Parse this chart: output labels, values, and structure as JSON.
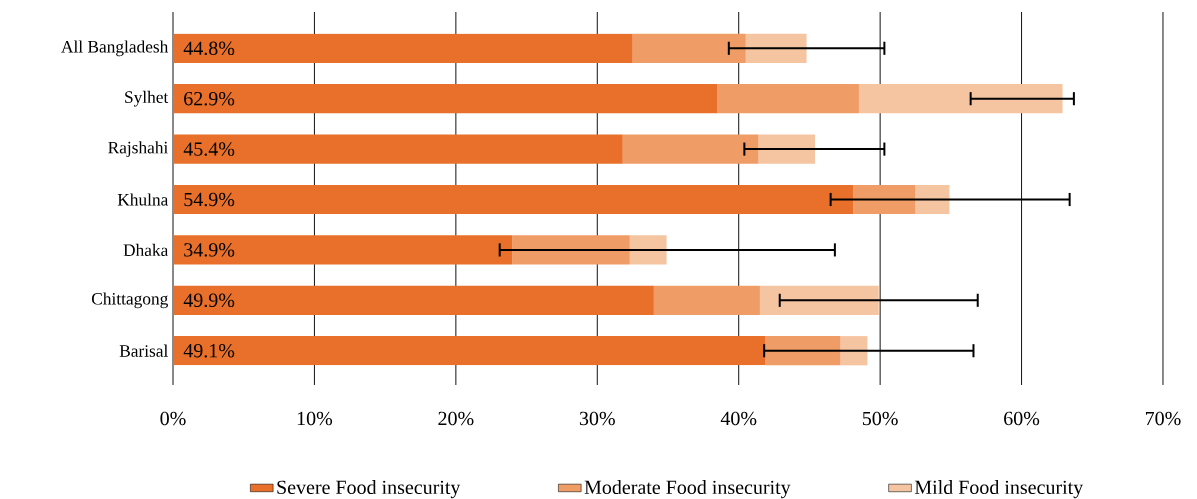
{
  "chart_data": {
    "type": "bar",
    "orientation": "horizontal",
    "stacked": true,
    "categories": [
      "All Bangladesh",
      "Sylhet",
      "Rajshahi",
      "Khulna",
      "Dhaka",
      "Chittagong",
      "Barisal"
    ],
    "series": [
      {
        "name": "Severe Food insecurity",
        "color": "#e8702a",
        "values": [
          32.5,
          38.5,
          31.8,
          48.1,
          24.0,
          34.0,
          41.9
        ]
      },
      {
        "name": "Moderate Food insecurity",
        "color": "#f09c66",
        "values": [
          8.0,
          10.0,
          9.6,
          4.4,
          8.3,
          7.5,
          5.3
        ]
      },
      {
        "name": "Mild Food insecurity",
        "color": "#f5c4a1",
        "values": [
          4.3,
          14.4,
          4.0,
          2.4,
          2.6,
          8.4,
          1.9
        ],
        "errors": [
          [
            39.3,
            50.3
          ],
          [
            56.4,
            63.7
          ],
          [
            40.4,
            50.3
          ],
          [
            46.5,
            63.4
          ],
          [
            23.1,
            46.8
          ],
          [
            42.9,
            56.9
          ],
          [
            41.8,
            56.6
          ]
        ]
      }
    ],
    "totals": [
      "44.8%",
      "62.9%",
      "45.4%",
      "54.9%",
      "34.9%",
      "49.9%",
      "49.1%"
    ],
    "xlim": [
      0,
      70
    ],
    "xticks": [
      {
        "value": 0,
        "label": "0%"
      },
      {
        "value": 10,
        "label": "10%"
      },
      {
        "value": 20,
        "label": "20%"
      },
      {
        "value": 30,
        "label": "30%"
      },
      {
        "value": 40,
        "label": "40%"
      },
      {
        "value": 50,
        "label": "50%"
      },
      {
        "value": 60,
        "label": "60%"
      },
      {
        "value": 70,
        "label": "70%"
      }
    ],
    "grid": "x",
    "legend": "bottom"
  }
}
